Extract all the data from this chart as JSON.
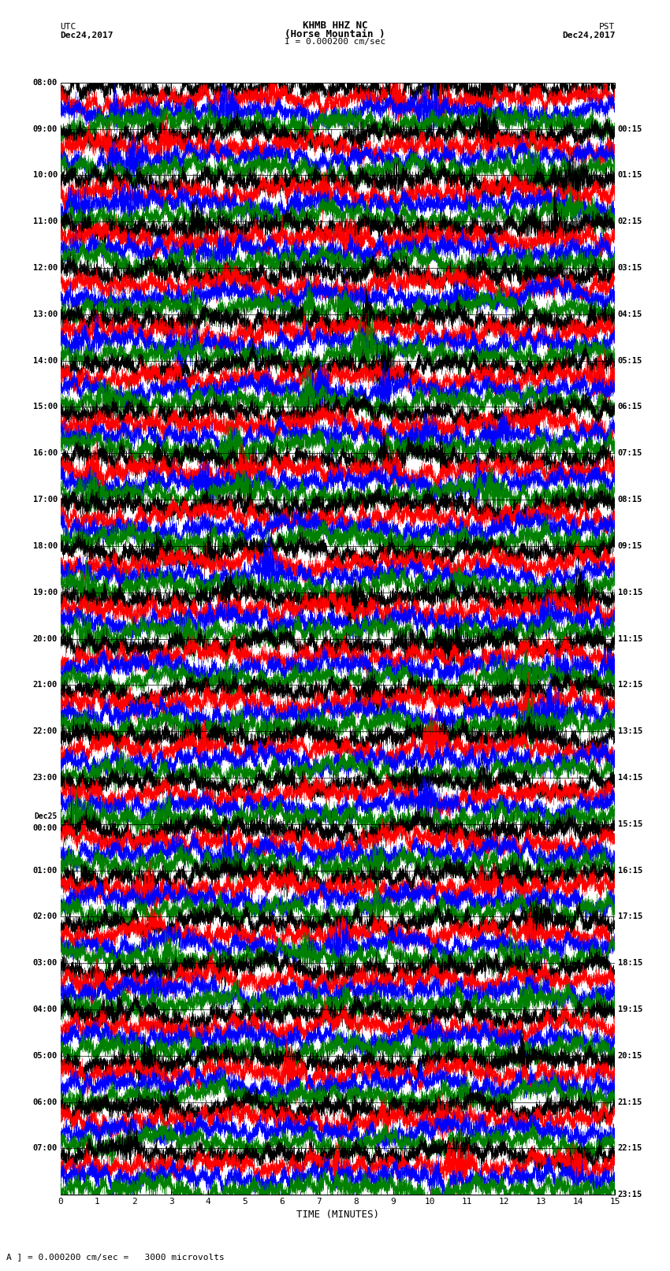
{
  "title_line1": "KHMB HHZ NC",
  "title_line2": "(Horse Mountain )",
  "title_line3": "I = 0.000200 cm/sec",
  "left_label_top": "UTC",
  "left_label_date": "Dec24,2017",
  "right_label_top": "PST",
  "right_label_date": "Dec24,2017",
  "bottom_label": "TIME (MINUTES)",
  "bottom_note": "A ] = 0.000200 cm/sec =   3000 microvolts",
  "xlim": [
    0,
    15
  ],
  "xticks": [
    0,
    1,
    2,
    3,
    4,
    5,
    6,
    7,
    8,
    9,
    10,
    11,
    12,
    13,
    14,
    15
  ],
  "left_times": [
    "08:00",
    "09:00",
    "10:00",
    "11:00",
    "12:00",
    "13:00",
    "14:00",
    "15:00",
    "16:00",
    "17:00",
    "18:00",
    "19:00",
    "20:00",
    "21:00",
    "22:00",
    "23:00",
    "Dec25\n00:00",
    "01:00",
    "02:00",
    "03:00",
    "04:00",
    "05:00",
    "06:00",
    "07:00"
  ],
  "right_times": [
    "00:15",
    "01:15",
    "02:15",
    "03:15",
    "04:15",
    "05:15",
    "06:15",
    "07:15",
    "08:15",
    "09:15",
    "10:15",
    "11:15",
    "12:15",
    "13:15",
    "14:15",
    "15:15",
    "16:15",
    "17:15",
    "18:15",
    "19:15",
    "20:15",
    "21:15",
    "22:15",
    "23:15"
  ],
  "trace_colors": [
    "black",
    "red",
    "blue",
    "green"
  ],
  "bg_color": "white",
  "n_rows": 24,
  "traces_per_row": 4,
  "fig_width": 8.5,
  "fig_height": 16.13,
  "seed": 42
}
